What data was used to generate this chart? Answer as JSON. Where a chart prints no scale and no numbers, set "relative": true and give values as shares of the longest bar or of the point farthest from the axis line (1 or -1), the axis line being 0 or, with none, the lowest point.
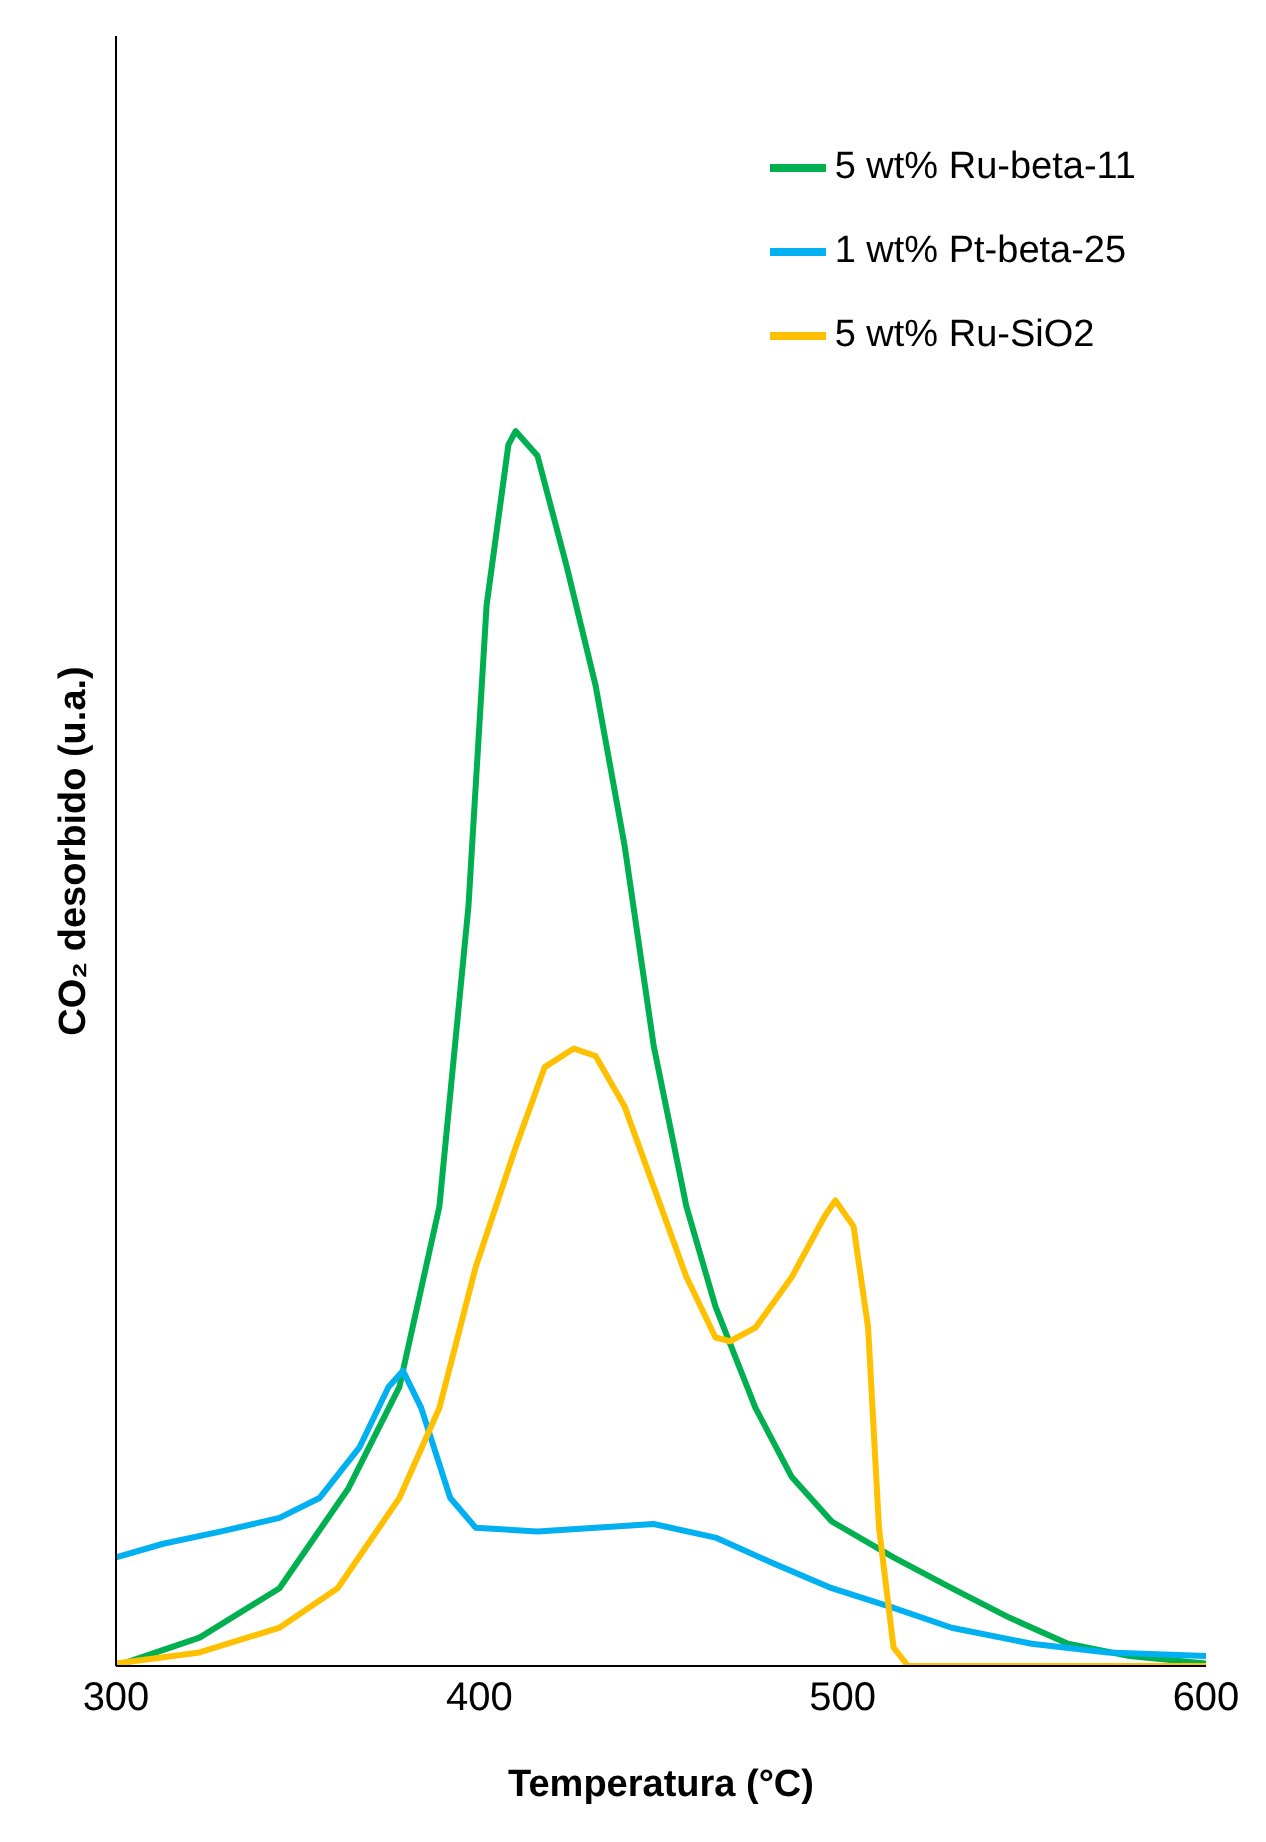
{
  "chart_data": {
    "type": "line",
    "relative": true,
    "xlabel": "Temperatura (°C)",
    "ylabel": "CO₂ desorbido (u.a.)",
    "xlim": [
      300,
      600
    ],
    "xticks": [
      300,
      400,
      500,
      600
    ],
    "legend": "top right",
    "marker": "none",
    "line_style": "solid",
    "series": [
      {
        "name": "5 wt% Ru-beta-11",
        "color": "#00b050",
        "x": [
          300,
          323,
          345,
          364,
          378,
          389,
          397,
          402,
          408,
          410,
          416,
          424,
          432,
          440,
          448,
          457,
          465,
          476,
          486,
          497,
          514,
          530,
          546,
          562,
          579,
          600
        ],
        "values": [
          0,
          0.023,
          0.063,
          0.144,
          0.226,
          0.372,
          0.615,
          0.859,
          0.989,
          1,
          0.98,
          0.891,
          0.794,
          0.664,
          0.502,
          0.372,
          0.291,
          0.209,
          0.153,
          0.117,
          0.088,
          0.063,
          0.039,
          0.018,
          0.008,
          0.002
        ]
      },
      {
        "name": "1 wt% Pt-beta-25",
        "color": "#00b0f0",
        "x": [
          300,
          313,
          329,
          345,
          356,
          367,
          375,
          379,
          384,
          392,
          399,
          416,
          432,
          448,
          465,
          481,
          497,
          514,
          530,
          552,
          573,
          600
        ],
        "values": [
          0.088,
          0.099,
          0.109,
          0.12,
          0.136,
          0.177,
          0.226,
          0.239,
          0.209,
          0.136,
          0.112,
          0.109,
          0.112,
          0.115,
          0.104,
          0.083,
          0.063,
          0.047,
          0.031,
          0.018,
          0.011,
          0.008
        ]
      },
      {
        "name": "5 wt% Ru-SiO2",
        "color": "#ffc000",
        "x": [
          300,
          323,
          345,
          361,
          378,
          389,
          399,
          410,
          418,
          426,
          432,
          440,
          448,
          457,
          465,
          469,
          476,
          486,
          495,
          498,
          503,
          507,
          510,
          514,
          518,
          600
        ],
        "values": [
          0.002,
          0.011,
          0.031,
          0.063,
          0.136,
          0.209,
          0.323,
          0.42,
          0.485,
          0.5,
          0.494,
          0.453,
          0.388,
          0.315,
          0.266,
          0.263,
          0.274,
          0.315,
          0.364,
          0.377,
          0.356,
          0.274,
          0.112,
          0.015,
          0,
          0
        ]
      }
    ]
  }
}
